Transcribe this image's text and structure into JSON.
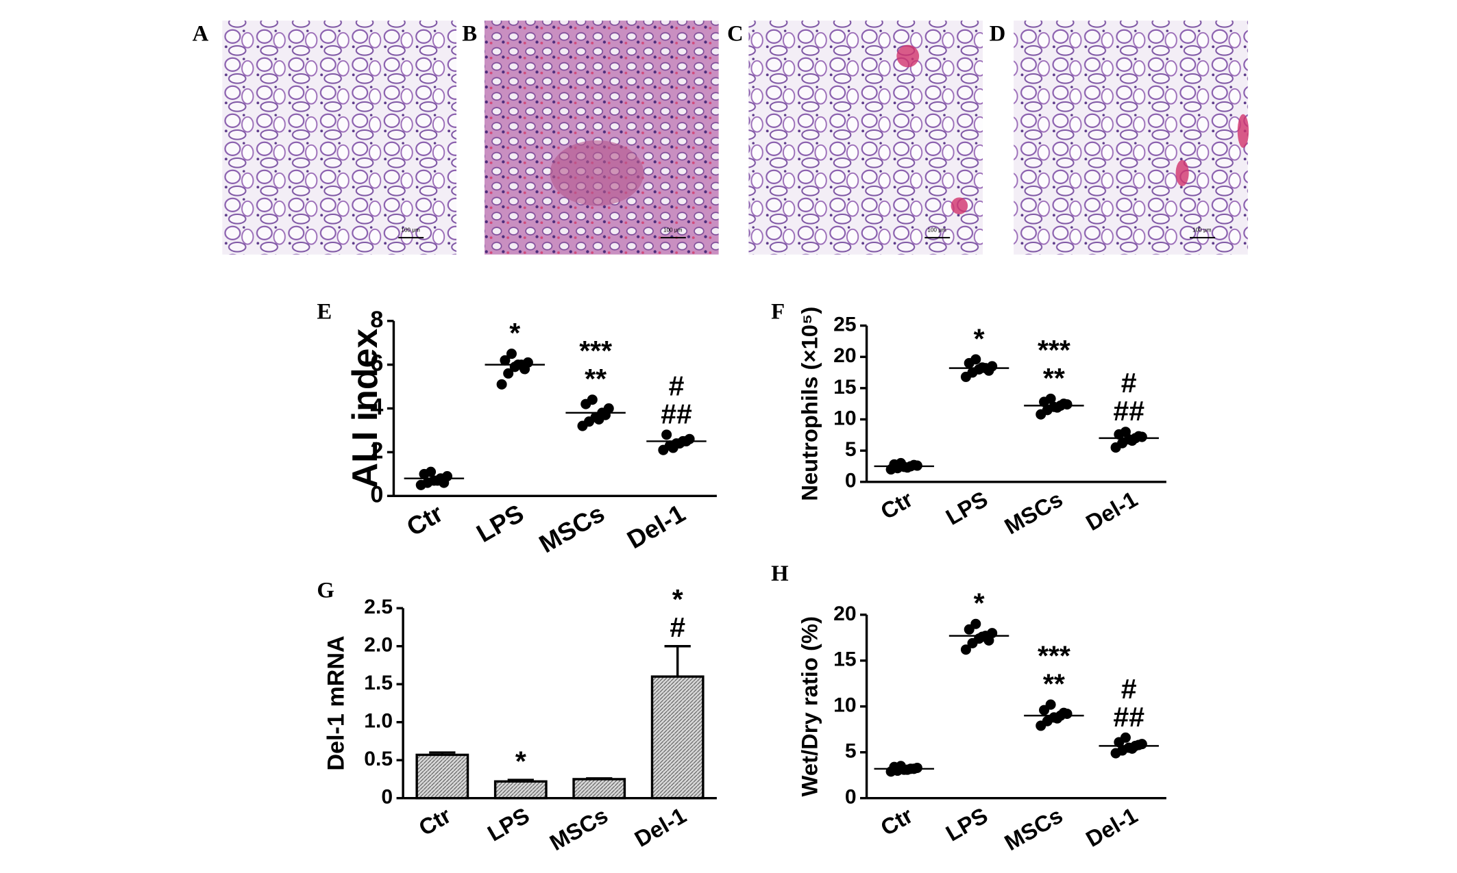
{
  "panels": [
    {
      "label": "A",
      "scale_bar": "100 μm"
    },
    {
      "label": "B",
      "scale_bar": "100 μm"
    },
    {
      "label": "C",
      "scale_bar": "100 μm"
    },
    {
      "label": "D",
      "scale_bar": "100 μm"
    }
  ],
  "chart_data": [
    {
      "type": "dotplot",
      "label": "E",
      "ylabel": "ALI index",
      "categories": [
        "Ctr",
        "LPS",
        "MSCs",
        "Del-1"
      ],
      "values": [
        [
          0.5,
          0.6,
          0.7,
          0.8,
          0.9,
          1.0,
          1.1,
          0.7,
          0.6
        ],
        [
          5.1,
          5.6,
          5.9,
          6.0,
          6.1,
          6.2,
          6.5,
          6.0,
          5.8
        ],
        [
          3.2,
          3.4,
          3.6,
          3.8,
          4.0,
          4.2,
          4.4,
          3.5,
          3.7
        ],
        [
          2.1,
          2.3,
          2.4,
          2.5,
          2.6,
          2.8,
          2.2,
          2.4,
          2.5
        ]
      ],
      "means": [
        0.8,
        6.0,
        3.8,
        2.5
      ],
      "annotations": [
        [],
        [
          "*"
        ],
        [
          "***",
          "**"
        ],
        [
          "#",
          "##"
        ]
      ],
      "color": "#000000",
      "ylim": [
        0,
        8
      ],
      "yticks": [
        0,
        2,
        4,
        6,
        8
      ]
    },
    {
      "type": "dotplot",
      "label": "F",
      "ylabel": "Neutrophils (×10⁵)",
      "categories": [
        "Ctr",
        "LPS",
        "MSCs",
        "Del-1"
      ],
      "values": [
        [
          2.0,
          2.2,
          2.4,
          2.5,
          2.6,
          2.8,
          3.0,
          2.3,
          2.7
        ],
        [
          16.8,
          17.5,
          18.0,
          18.2,
          18.5,
          19.0,
          19.6,
          18.3,
          17.8
        ],
        [
          10.8,
          11.5,
          12.0,
          12.2,
          12.4,
          12.8,
          13.3,
          11.9,
          12.5
        ],
        [
          5.5,
          6.2,
          6.8,
          7.0,
          7.2,
          7.6,
          8.0,
          6.6,
          7.3
        ]
      ],
      "means": [
        2.5,
        18.2,
        12.2,
        7.0
      ],
      "annotations": [
        [],
        [
          "*"
        ],
        [
          "***",
          "**"
        ],
        [
          "#",
          "##"
        ]
      ],
      "color": "#000000",
      "ylim": [
        0,
        25
      ],
      "yticks": [
        0,
        5,
        10,
        15,
        20,
        25
      ]
    },
    {
      "type": "bar",
      "label": "G",
      "ylabel": "Del-1 mRNA",
      "categories": [
        "Ctr",
        "LPS",
        "MSCs",
        "Del-1"
      ],
      "values": [
        0.57,
        0.22,
        0.25,
        1.6
      ],
      "errors": [
        0.03,
        0.02,
        0.01,
        0.4
      ],
      "annotations": [
        [],
        [
          "*"
        ],
        [],
        [
          "*",
          "#"
        ]
      ],
      "color": "#000000",
      "ylim": [
        0,
        2.5
      ],
      "yticks": [
        0,
        0.5,
        {
          "value": 1,
          "label": "1.0"
        },
        1.5,
        {
          "value": 2,
          "label": "2.0"
        },
        2.5
      ]
    },
    {
      "type": "dotplot",
      "label": "H",
      "ylabel": "Wet/Dry ratio (%)",
      "categories": [
        "Ctr",
        "LPS",
        "MSCs",
        "Del-1"
      ],
      "values": [
        [
          2.9,
          3.0,
          3.1,
          3.2,
          3.3,
          3.4,
          3.5,
          3.1,
          3.2
        ],
        [
          16.2,
          16.9,
          17.4,
          17.7,
          18.0,
          18.4,
          19.0,
          17.6,
          17.2
        ],
        [
          7.9,
          8.4,
          8.8,
          9.0,
          9.2,
          9.6,
          10.2,
          8.7,
          9.3
        ],
        [
          4.9,
          5.2,
          5.5,
          5.7,
          5.9,
          6.1,
          6.6,
          5.4,
          5.8
        ]
      ],
      "means": [
        3.2,
        17.7,
        9.0,
        5.7
      ],
      "annotations": [
        [],
        [
          "*"
        ],
        [
          "***",
          "**"
        ],
        [
          "#",
          "##"
        ]
      ],
      "color": "#000000",
      "ylim": [
        0,
        20
      ],
      "yticks": [
        0,
        5,
        10,
        15,
        20
      ]
    }
  ]
}
